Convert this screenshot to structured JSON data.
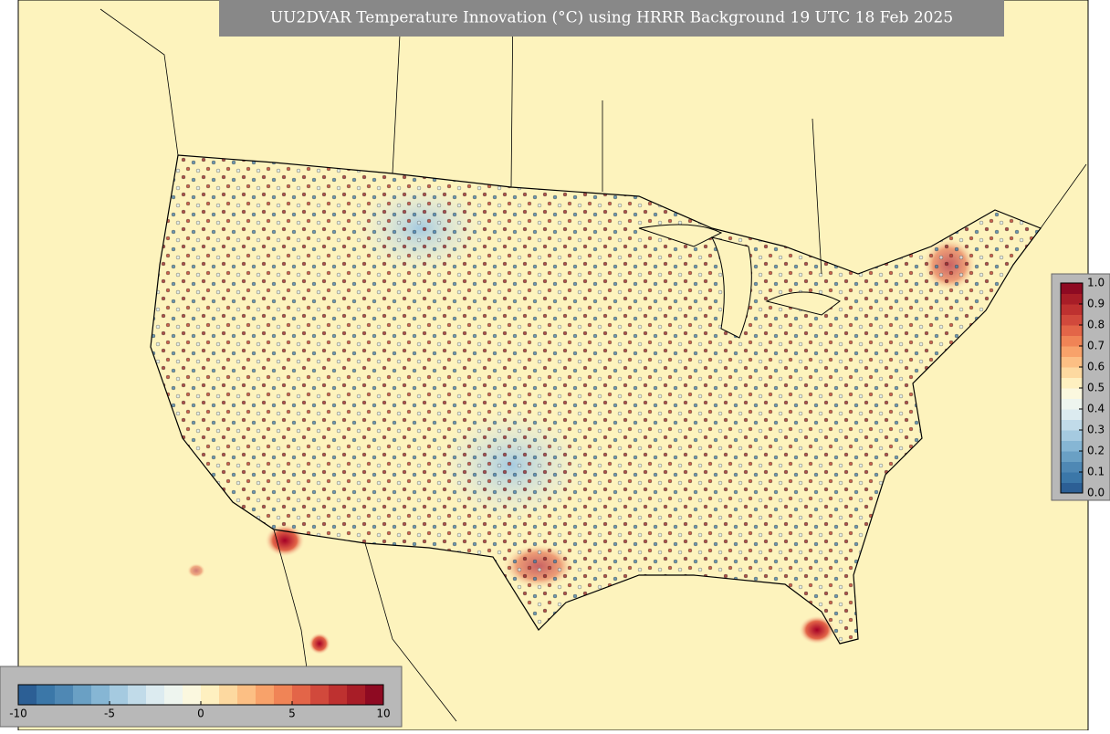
{
  "title": "UU2DVAR Temperature Innovation (°C) using HRRR Background 19 UTC 18 Feb 2025",
  "colors": [
    "#2c5f95",
    "#3b77a8",
    "#4f88b4",
    "#6aa0c4",
    "#86b6d4",
    "#a5cae0",
    "#c1dbe9",
    "#dcebf0",
    "#eef5ef",
    "#fbf8df",
    "#fef0c0",
    "#fdd9a0",
    "#fcbf84",
    "#f8a26a",
    "#f08456",
    "#e36548",
    "#d1493c",
    "#be3130",
    "#a81d27",
    "#8e0a22"
  ],
  "innovation_colorbar": {
    "lim": [
      -10,
      10
    ],
    "ticks": [
      -10,
      -5,
      0,
      5,
      10
    ]
  },
  "weight_colorbar": {
    "lim": [
      0,
      1
    ],
    "ticks": [
      {
        "value": 0,
        "label": "0.0"
      },
      0.1,
      0.2,
      0.3,
      0.4,
      0.5,
      0.6,
      0.7,
      0.8,
      0.9,
      {
        "value": 1,
        "label": "1.0"
      }
    ]
  }
}
